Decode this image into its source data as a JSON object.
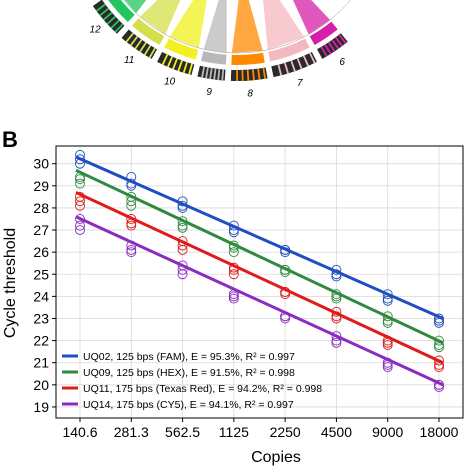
{
  "panel_b_label": "B",
  "circos": {
    "chromosome_labels": [
      "12",
      "11",
      "10",
      "9",
      "8",
      "7",
      "6"
    ],
    "segment_colors": [
      "#22c55e",
      "#d4e04a",
      "#f2f01e",
      "#b9b9b9",
      "#ff8a00",
      "#f4b8c0",
      "#d61fa8"
    ]
  },
  "chart_data": {
    "type": "scatter",
    "title": "",
    "xlabel": "Copies",
    "ylabel": "Cycle threshold",
    "x_scale": "log2",
    "x": [
      140.6,
      281.3,
      562.5,
      1125,
      2250,
      4500,
      9000,
      18000
    ],
    "x_tick_labels": [
      "140.6",
      "281.3",
      "562.5",
      "1125",
      "2250",
      "4500",
      "9000",
      "18000"
    ],
    "ylim": [
      18.5,
      30.8
    ],
    "y_ticks": [
      19,
      20,
      21,
      22,
      23,
      24,
      25,
      26,
      27,
      28,
      29,
      30
    ],
    "grid": true,
    "legend_position": "bottom-left",
    "series": [
      {
        "name": "UQ02, 125 bps (FAM), E = 95.3%, R² = 0.997",
        "color": "#1f4fbf",
        "fit": [
          30.3,
          23.0
        ],
        "points": [
          [
            30.4,
            30.2,
            30.0
          ],
          [
            29.4,
            29.1,
            29.0
          ],
          [
            28.3,
            28.0,
            28.1
          ],
          [
            27.2,
            27.0,
            26.9
          ],
          [
            26.1,
            26.0,
            26.1
          ],
          [
            25.2,
            25.0,
            24.9
          ],
          [
            24.1,
            23.9,
            23.8
          ],
          [
            23.0,
            22.9,
            22.8
          ]
        ]
      },
      {
        "name": "UQ09, 125 bps (HEX), E = 91.5%, R² = 0.998",
        "color": "#2e8b3e",
        "fit": [
          29.7,
          21.9
        ],
        "points": [
          [
            29.4,
            29.3,
            29.1
          ],
          [
            28.5,
            28.3,
            28.1
          ],
          [
            27.4,
            27.2,
            27.1
          ],
          [
            26.3,
            26.2,
            26.0
          ],
          [
            25.2,
            25.1,
            25.2
          ],
          [
            24.1,
            24.0,
            23.9
          ],
          [
            23.1,
            22.9,
            22.8
          ],
          [
            22.0,
            21.8,
            21.7
          ]
        ]
      },
      {
        "name": "UQ11, 175 bps (Texas Red), E = 94.2%, R² = 0.998",
        "color": "#e01b1b",
        "fit": [
          28.7,
          21.0
        ],
        "points": [
          [
            28.5,
            28.3,
            28.1
          ],
          [
            27.5,
            27.3,
            27.2
          ],
          [
            26.5,
            26.3,
            26.1
          ],
          [
            25.3,
            25.2,
            25.0
          ],
          [
            24.2,
            24.1,
            24.2
          ],
          [
            23.3,
            23.1,
            23.0
          ],
          [
            22.0,
            21.9,
            21.8
          ],
          [
            21.1,
            20.9,
            20.8
          ]
        ]
      },
      {
        "name": "UQ14, 175 bps (CY5), E = 94.1%, R² = 0.997",
        "color": "#8a2cbf",
        "fit": [
          27.6,
          20.0
        ],
        "points": [
          [
            27.5,
            27.2,
            27.0
          ],
          [
            26.3,
            26.1,
            26.0
          ],
          [
            25.4,
            25.2,
            25.0
          ],
          [
            24.1,
            24.0,
            23.9
          ],
          [
            23.1,
            23.0,
            23.1
          ],
          [
            22.2,
            22.0,
            21.9
          ],
          [
            21.0,
            20.9,
            20.8
          ],
          [
            20.0,
            20.0,
            19.9
          ]
        ]
      }
    ]
  }
}
